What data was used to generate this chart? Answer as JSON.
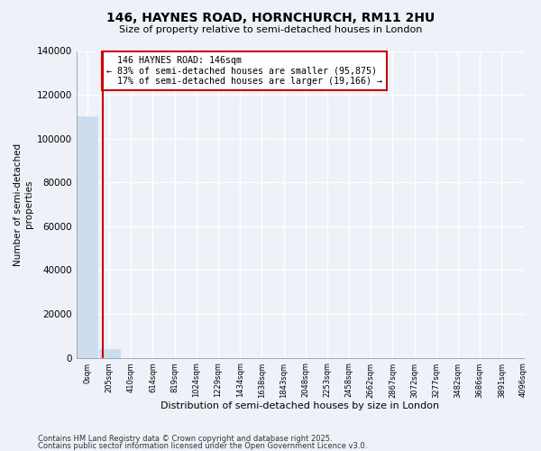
{
  "title": "146, HAYNES ROAD, HORNCHURCH, RM11 2HU",
  "subtitle": "Size of property relative to semi-detached houses in London",
  "xlabel": "Distribution of semi-detached houses by size in London",
  "ylabel": "Number of semi-detached\nproperties",
  "property_label": "146 HAYNES ROAD: 146sqm",
  "pct_smaller": 83,
  "count_smaller": 95875,
  "pct_larger": 17,
  "count_larger": 19166,
  "bar_color": "#ccddf0",
  "property_line_color": "#cc0000",
  "annotation_box_color": "#cc0000",
  "background_color": "#eef2f8",
  "grid_color": "#ffffff",
  "ylim": [
    0,
    140000
  ],
  "yticks": [
    0,
    20000,
    40000,
    60000,
    80000,
    100000,
    120000,
    140000
  ],
  "bin_labels": [
    "0sqm",
    "205sqm",
    "410sqm",
    "614sqm",
    "819sqm",
    "1024sqm",
    "1229sqm",
    "1434sqm",
    "1638sqm",
    "1843sqm",
    "2048sqm",
    "2253sqm",
    "2458sqm",
    "2662sqm",
    "2867sqm",
    "3072sqm",
    "3277sqm",
    "3482sqm",
    "3686sqm",
    "3891sqm",
    "4096sqm"
  ],
  "bar_heights": [
    110000,
    4000,
    0,
    0,
    0,
    0,
    0,
    0,
    0,
    0,
    0,
    0,
    0,
    0,
    0,
    0,
    0,
    0,
    0,
    0
  ],
  "property_bin": 0,
  "property_line_x": 0.71,
  "footer_line1": "Contains HM Land Registry data © Crown copyright and database right 2025.",
  "footer_line2": "Contains public sector information licensed under the Open Government Licence v3.0."
}
